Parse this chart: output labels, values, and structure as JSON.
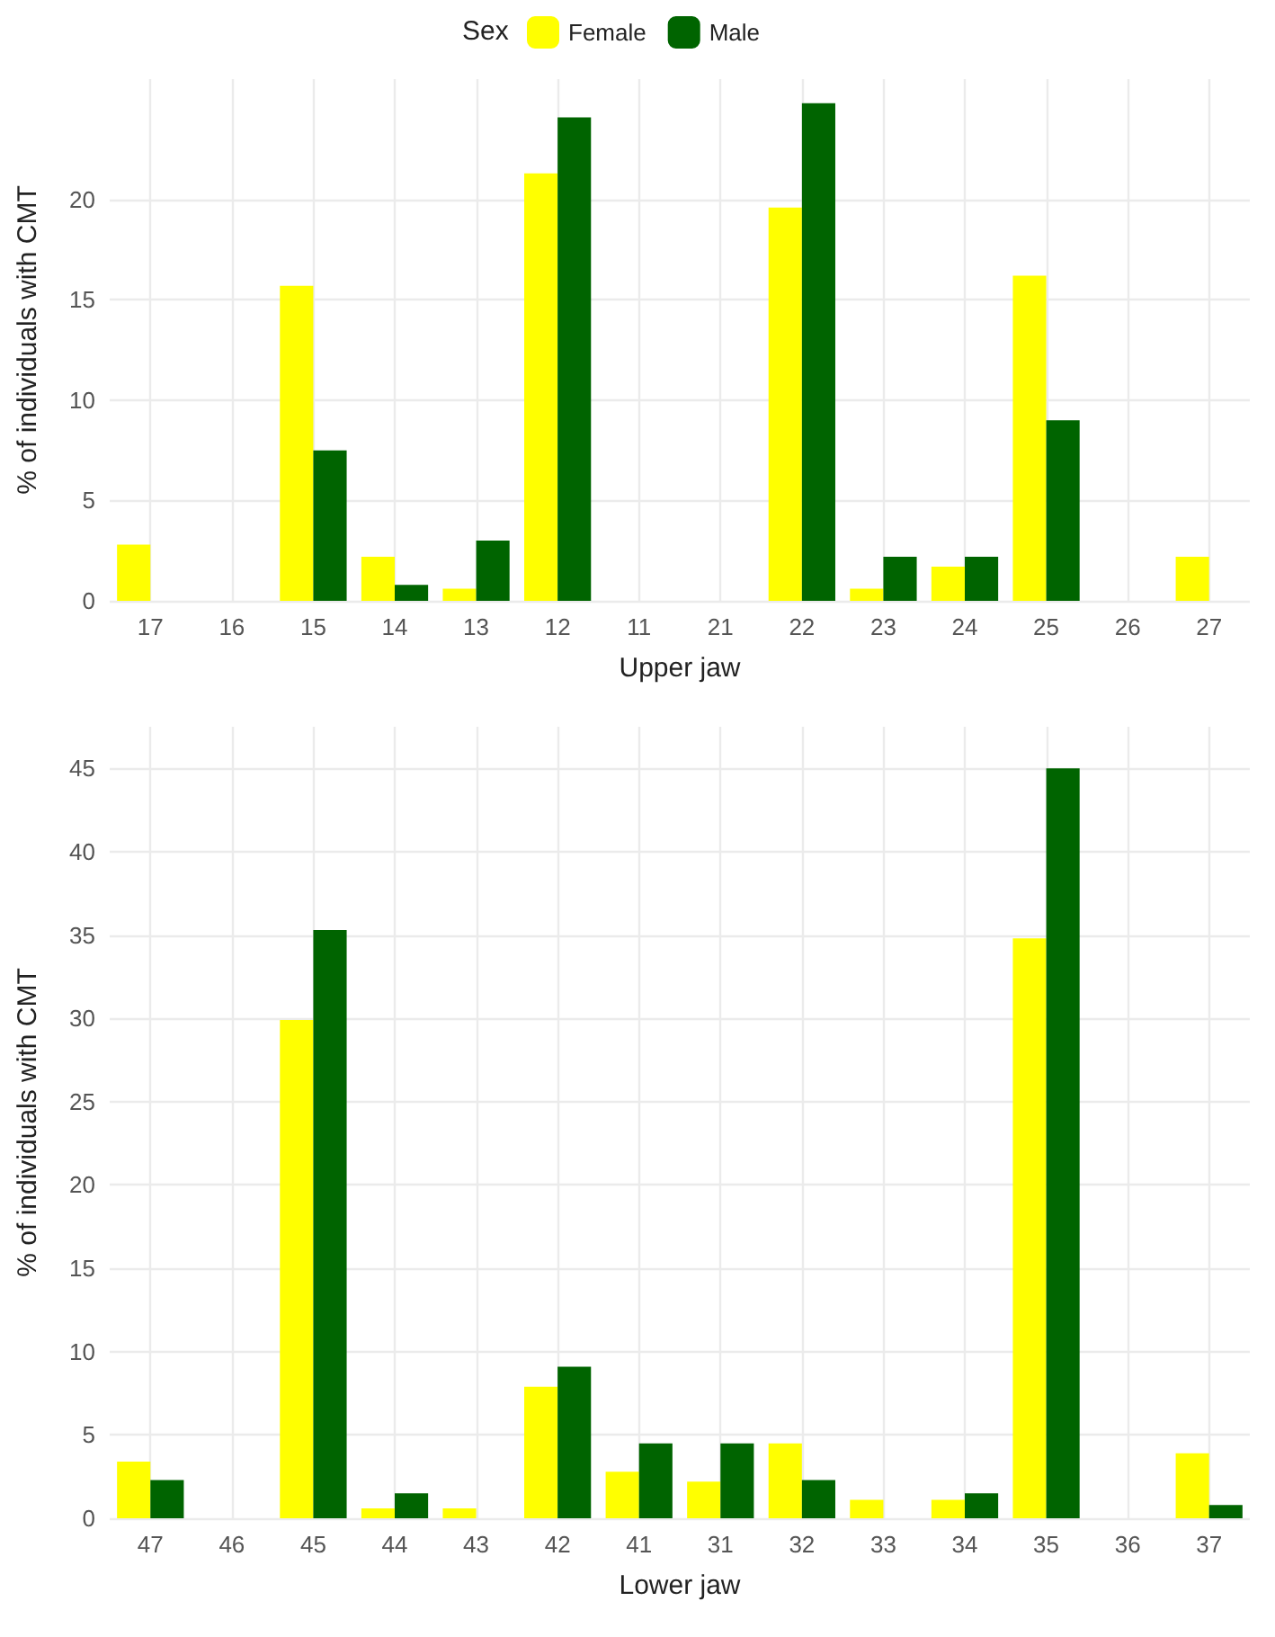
{
  "chart_data": [
    {
      "type": "bar",
      "xlabel": "Upper jaw",
      "ylabel": "% of individuals with CMT",
      "legend_title": "Sex",
      "legend": "top",
      "categories": [
        "17",
        "16",
        "15",
        "14",
        "13",
        "12",
        "11",
        "21",
        "22",
        "23",
        "24",
        "25",
        "26",
        "27"
      ],
      "series": [
        {
          "name": "Female",
          "color": "#ffff00",
          "values": [
            2.8,
            0,
            15.7,
            2.2,
            0.6,
            21.3,
            0,
            0,
            19.6,
            0.6,
            1.7,
            16.2,
            0,
            2.2
          ]
        },
        {
          "name": "Male",
          "color": "#006400",
          "values": [
            0,
            0,
            7.5,
            0.8,
            3.0,
            24.1,
            0,
            0,
            24.8,
            2.2,
            2.2,
            9.0,
            0,
            0
          ]
        }
      ],
      "ylim": [
        0,
        26
      ],
      "yticks": [
        0,
        5,
        10,
        15,
        20
      ],
      "grid": true
    },
    {
      "type": "bar",
      "xlabel": "Lower jaw",
      "ylabel": "% of individuals with CMT",
      "categories": [
        "47",
        "46",
        "45",
        "44",
        "43",
        "42",
        "41",
        "31",
        "32",
        "33",
        "34",
        "35",
        "36",
        "37"
      ],
      "series": [
        {
          "color": "#ffff00",
          "values": [
            3.4,
            0,
            29.9,
            0.6,
            0.6,
            7.9,
            2.8,
            2.2,
            4.5,
            1.1,
            1.1,
            34.8,
            0,
            3.9
          ]
        },
        {
          "color": "#006400",
          "values": [
            2.3,
            0,
            35.3,
            1.5,
            0,
            9.1,
            4.5,
            4.5,
            2.3,
            0,
            1.5,
            45.0,
            0,
            0.8
          ]
        }
      ],
      "ylim": [
        0,
        47.5
      ],
      "yticks": [
        0,
        5,
        10,
        15,
        20,
        25,
        30,
        35,
        40,
        45
      ],
      "grid": true
    }
  ]
}
